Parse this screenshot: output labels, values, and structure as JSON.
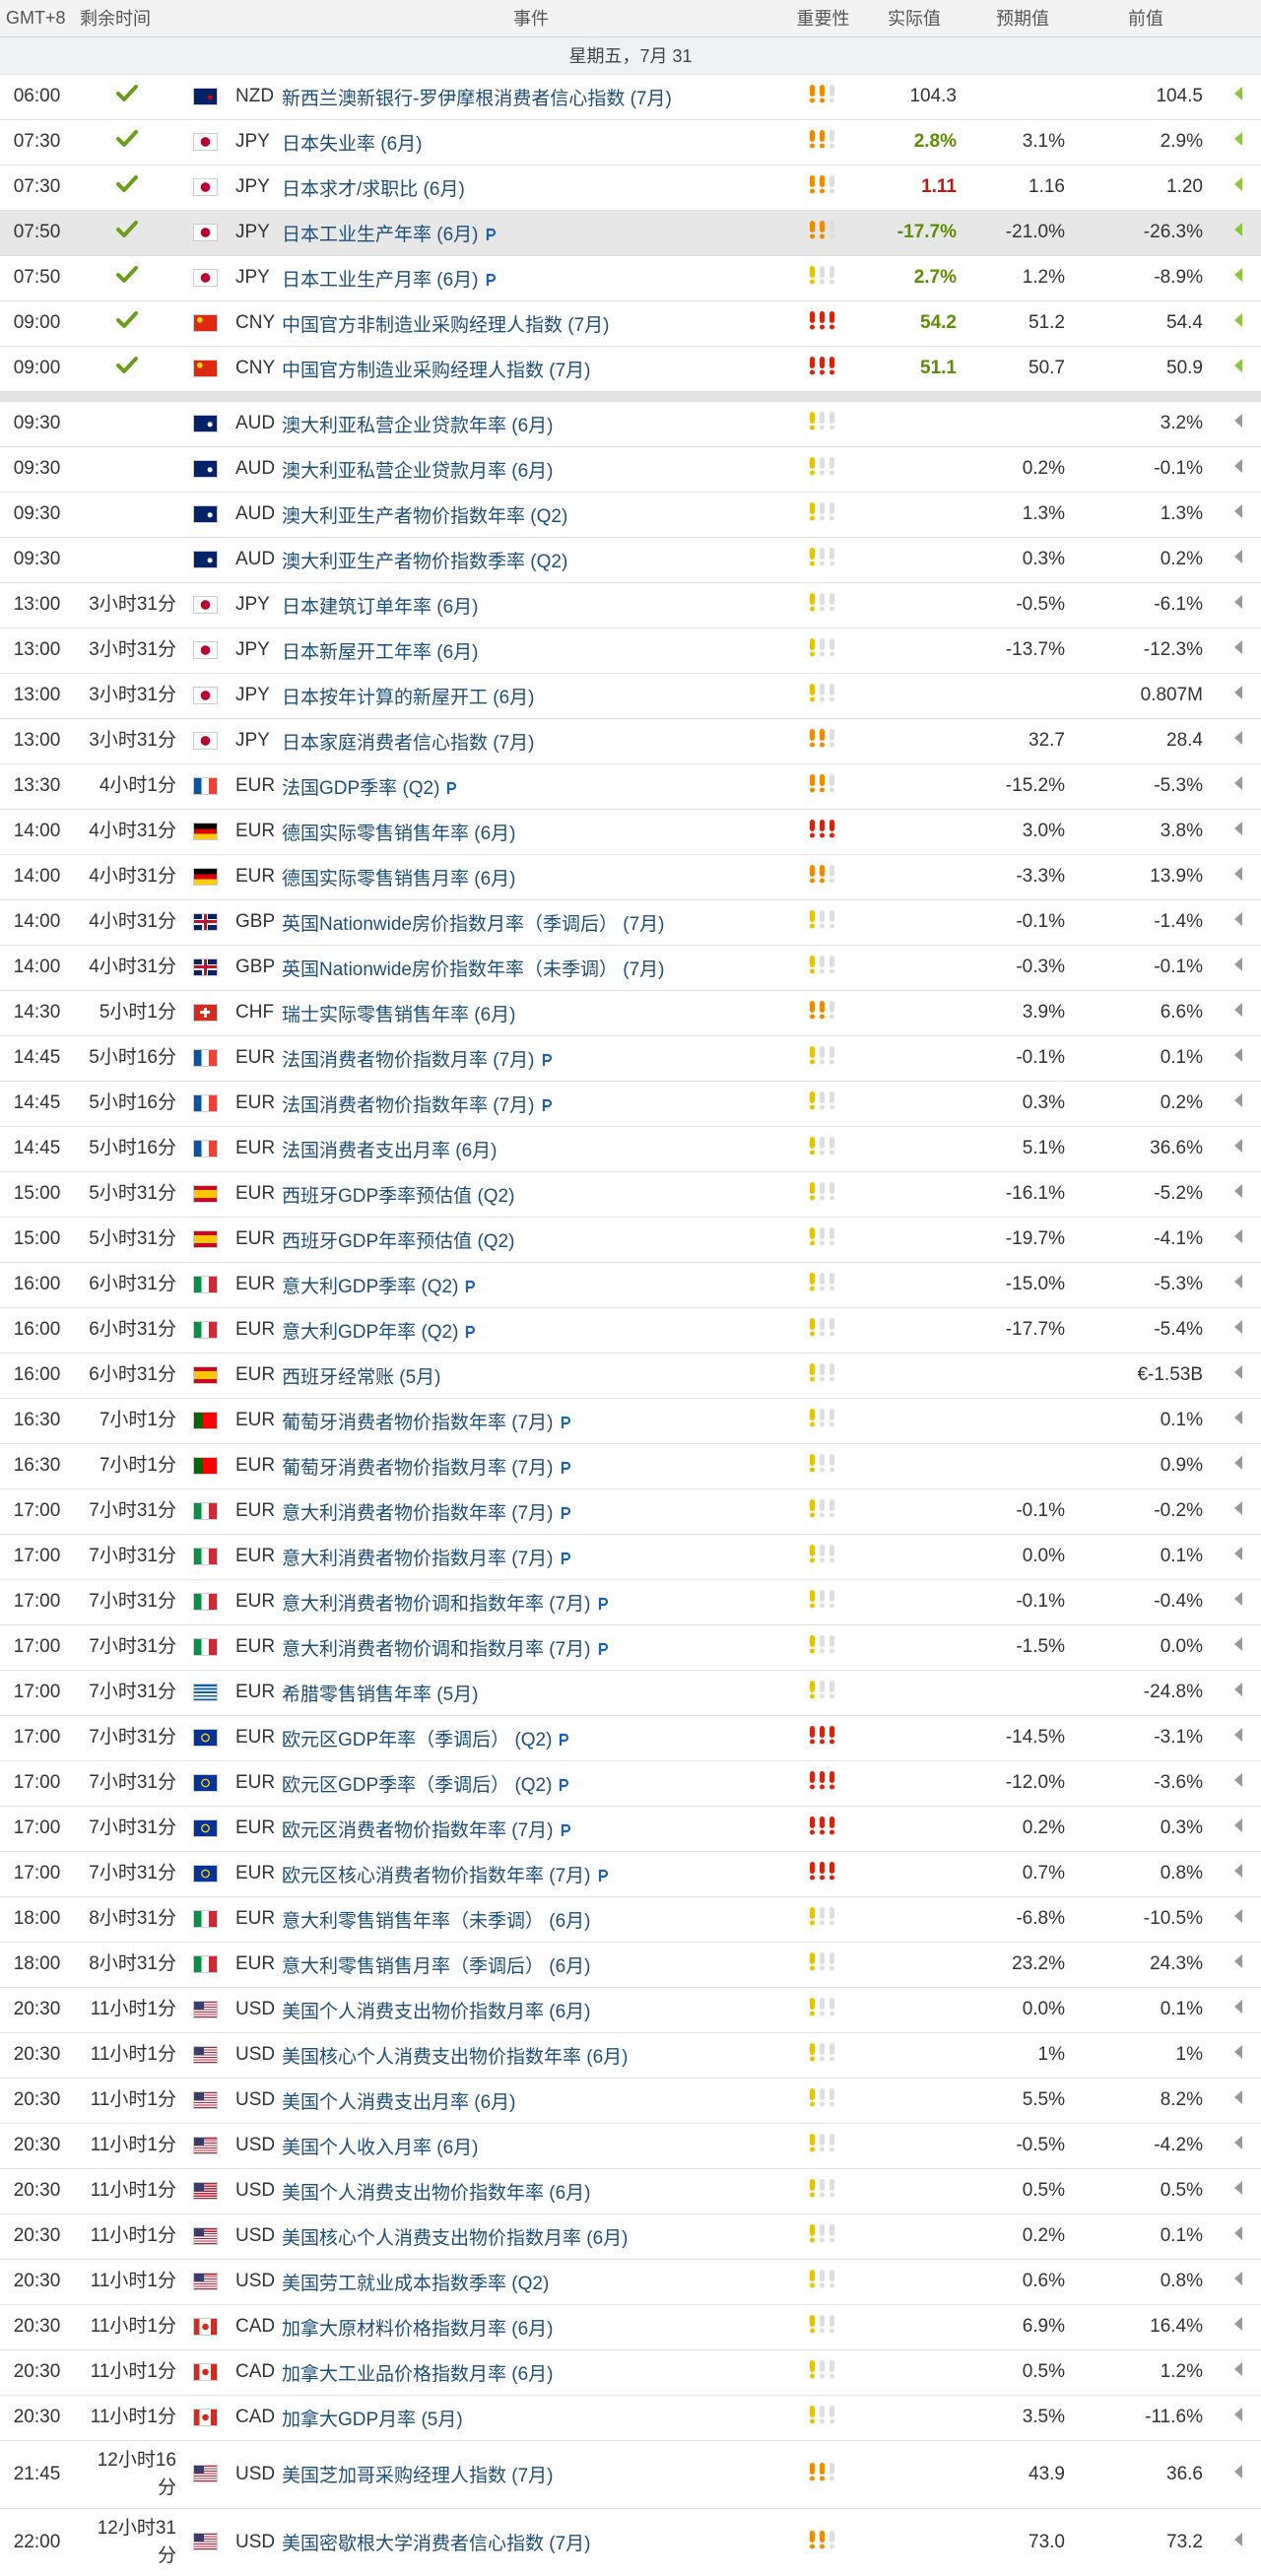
{
  "header": {
    "timezone": "GMT+8",
    "remaining": "剩余时间",
    "event": "事件",
    "importance": "重要性",
    "actual": "实际值",
    "forecast": "预期值",
    "previous": "前值"
  },
  "date": "星期五，7月 31",
  "released": [
    {
      "time": "06:00",
      "currency": "NZD",
      "event": "新西兰澳新银行-罗伊摩根消费者信心指数 (7月)",
      "importance": 2,
      "actual": "104.3",
      "previous": "104.5"
    },
    {
      "time": "07:30",
      "currency": "JPY",
      "event": "日本失业率 (6月)",
      "importance": 2,
      "actual": "2.8%",
      "actual_color": "#5a8f00",
      "forecast": "3.1%",
      "previous": "2.9%"
    },
    {
      "time": "07:30",
      "currency": "JPY",
      "event": "日本求才/求职比 (6月)",
      "importance": 2,
      "actual": "1.11",
      "actual_color": "#c8140a",
      "forecast": "1.16",
      "previous": "1.20"
    },
    {
      "time": "07:50",
      "currency": "JPY",
      "event": "日本工业生产年率 (6月)",
      "preliminary": true,
      "importance": 2,
      "actual": "-17.7%",
      "actual_color": "#5a8f00",
      "forecast": "-21.0%",
      "previous": "-26.3%",
      "highlighted": true
    },
    {
      "time": "07:50",
      "currency": "JPY",
      "event": "日本工业生产月率 (6月)",
      "preliminary": true,
      "importance": 1,
      "actual": "2.7%",
      "actual_color": "#5a8f00",
      "forecast": "1.2%",
      "previous": "-8.9%"
    },
    {
      "time": "09:00",
      "currency": "CNY",
      "event": "中国官方非制造业采购经理人指数 (7月)",
      "importance": 3,
      "actual": "54.2",
      "actual_color": "#5a8f00",
      "forecast": "51.2",
      "previous": "54.4"
    },
    {
      "time": "09:00",
      "currency": "CNY",
      "event": "中国官方制造业采购经理人指数 (7月)",
      "importance": 3,
      "actual": "51.1",
      "actual_color": "#5a8f00",
      "forecast": "50.7",
      "previous": "50.9"
    }
  ],
  "upcoming": [
    {
      "time": "09:30",
      "currency": "AUD",
      "event": "澳大利亚私营企业贷款年率 (6月)",
      "importance": 1,
      "previous": "3.2%"
    },
    {
      "time": "09:30",
      "currency": "AUD",
      "event": "澳大利亚私营企业贷款月率 (6月)",
      "importance": 1,
      "forecast": "0.2%",
      "previous": "-0.1%"
    },
    {
      "time": "09:30",
      "currency": "AUD",
      "event": "澳大利亚生产者物价指数年率 (Q2)",
      "importance": 1,
      "forecast": "1.3%",
      "previous": "1.3%"
    },
    {
      "time": "09:30",
      "currency": "AUD",
      "event": "澳大利亚生产者物价指数季率 (Q2)",
      "importance": 1,
      "forecast": "0.3%",
      "previous": "0.2%"
    },
    {
      "time": "13:00",
      "remaining": "3小时31分",
      "currency": "JPY",
      "event": "日本建筑订单年率 (6月)",
      "importance": 1,
      "forecast": "-0.5%",
      "previous": "-6.1%"
    },
    {
      "time": "13:00",
      "remaining": "3小时31分",
      "currency": "JPY",
      "event": "日本新屋开工年率 (6月)",
      "importance": 1,
      "forecast": "-13.7%",
      "previous": "-12.3%"
    },
    {
      "time": "13:00",
      "remaining": "3小时31分",
      "currency": "JPY",
      "event": "日本按年计算的新屋开工 (6月)",
      "importance": 1,
      "previous": "0.807M"
    },
    {
      "time": "13:00",
      "remaining": "3小时31分",
      "currency": "JPY",
      "event": "日本家庭消费者信心指数 (7月)",
      "importance": 2,
      "forecast": "32.7",
      "previous": "28.4"
    },
    {
      "time": "13:30",
      "remaining": "4小时1分",
      "currency": "EUR",
      "event": "法国GDP季率 (Q2)",
      "preliminary": true,
      "importance": 2,
      "forecast": "-15.2%",
      "previous": "-5.3%"
    },
    {
      "time": "14:00",
      "remaining": "4小时31分",
      "currency": "EUR",
      "event": "德国实际零售销售年率 (6月)",
      "importance": 3,
      "forecast": "3.0%",
      "previous": "3.8%"
    },
    {
      "time": "14:00",
      "remaining": "4小时31分",
      "currency": "EUR",
      "event": "德国实际零售销售月率 (6月)",
      "importance": 2,
      "forecast": "-3.3%",
      "previous": "13.9%"
    },
    {
      "time": "14:00",
      "remaining": "4小时31分",
      "currency": "GBP",
      "event": "英国Nationwide房价指数月率（季调后） (7月)",
      "importance": 1,
      "forecast": "-0.1%",
      "previous": "-1.4%"
    },
    {
      "time": "14:00",
      "remaining": "4小时31分",
      "currency": "GBP",
      "event": "英国Nationwide房价指数年率（未季调） (7月)",
      "importance": 1,
      "forecast": "-0.3%",
      "previous": "-0.1%"
    },
    {
      "time": "14:30",
      "remaining": "5小时1分",
      "currency": "CHF",
      "event": "瑞士实际零售销售年率 (6月)",
      "importance": 2,
      "forecast": "3.9%",
      "previous": "6.6%"
    },
    {
      "time": "14:45",
      "remaining": "5小时16分",
      "currency": "EUR",
      "event": "法国消费者物价指数月率 (7月)",
      "preliminary": true,
      "importance": 1,
      "forecast": "-0.1%",
      "previous": "0.1%"
    },
    {
      "time": "14:45",
      "remaining": "5小时16分",
      "currency": "EUR",
      "event": "法国消费者物价指数年率 (7月)",
      "preliminary": true,
      "importance": 1,
      "forecast": "0.3%",
      "previous": "0.2%"
    },
    {
      "time": "14:45",
      "remaining": "5小时16分",
      "currency": "EUR",
      "event": "法国消费者支出月率 (6月)",
      "importance": 1,
      "forecast": "5.1%",
      "previous": "36.6%"
    },
    {
      "time": "15:00",
      "remaining": "5小时31分",
      "currency": "EUR",
      "event": "西班牙GDP季率预估值 (Q2)",
      "importance": 1,
      "forecast": "-16.1%",
      "previous": "-5.2%"
    },
    {
      "time": "15:00",
      "remaining": "5小时31分",
      "currency": "EUR",
      "event": "西班牙GDP年率预估值 (Q2)",
      "importance": 1,
      "forecast": "-19.7%",
      "previous": "-4.1%"
    },
    {
      "time": "16:00",
      "remaining": "6小时31分",
      "currency": "EUR",
      "event": "意大利GDP季率 (Q2)",
      "preliminary": true,
      "importance": 1,
      "forecast": "-15.0%",
      "previous": "-5.3%"
    },
    {
      "time": "16:00",
      "remaining": "6小时31分",
      "currency": "EUR",
      "event": "意大利GDP年率 (Q2)",
      "preliminary": true,
      "importance": 1,
      "forecast": "-17.7%",
      "previous": "-5.4%"
    },
    {
      "time": "16:00",
      "remaining": "6小时31分",
      "currency": "EUR",
      "event": "西班牙经常账 (5月)",
      "importance": 1,
      "previous": "€-1.53B"
    },
    {
      "time": "16:30",
      "remaining": "7小时1分",
      "currency": "EUR",
      "event": "葡萄牙消费者物价指数年率 (7月)",
      "preliminary": true,
      "importance": 1,
      "previous": "0.1%"
    },
    {
      "time": "16:30",
      "remaining": "7小时1分",
      "currency": "EUR",
      "event": "葡萄牙消费者物价指数月率 (7月)",
      "preliminary": true,
      "importance": 1,
      "previous": "0.9%"
    },
    {
      "time": "17:00",
      "remaining": "7小时31分",
      "currency": "EUR",
      "event": "意大利消费者物价指数年率 (7月)",
      "preliminary": true,
      "importance": 1,
      "forecast": "-0.1%",
      "previous": "-0.2%"
    },
    {
      "time": "17:00",
      "remaining": "7小时31分",
      "currency": "EUR",
      "event": "意大利消费者物价指数月率 (7月)",
      "preliminary": true,
      "importance": 1,
      "forecast": "0.0%",
      "previous": "0.1%"
    },
    {
      "time": "17:00",
      "remaining": "7小时31分",
      "currency": "EUR",
      "event": "意大利消费者物价调和指数年率 (7月)",
      "preliminary": true,
      "importance": 1,
      "forecast": "-0.1%",
      "previous": "-0.4%"
    },
    {
      "time": "17:00",
      "remaining": "7小时31分",
      "currency": "EUR",
      "event": "意大利消费者物价调和指数月率 (7月)",
      "preliminary": true,
      "importance": 1,
      "forecast": "-1.5%",
      "previous": "0.0%"
    },
    {
      "time": "17:00",
      "remaining": "7小时31分",
      "currency": "EUR",
      "event": "希腊零售销售年率 (5月)",
      "importance": 1,
      "previous": "-24.8%"
    },
    {
      "time": "17:00",
      "remaining": "7小时31分",
      "currency": "EUR",
      "event": "欧元区GDP年率（季调后） (Q2)",
      "preliminary": true,
      "importance": 3,
      "forecast": "-14.5%",
      "previous": "-3.1%"
    },
    {
      "time": "17:00",
      "remaining": "7小时31分",
      "currency": "EUR",
      "event": "欧元区GDP季率（季调后） (Q2)",
      "preliminary": true,
      "importance": 3,
      "forecast": "-12.0%",
      "previous": "-3.6%"
    },
    {
      "time": "17:00",
      "remaining": "7小时31分",
      "currency": "EUR",
      "event": "欧元区消费者物价指数年率 (7月)",
      "preliminary": true,
      "importance": 3,
      "forecast": "0.2%",
      "previous": "0.3%"
    },
    {
      "time": "17:00",
      "remaining": "7小时31分",
      "currency": "EUR",
      "event": "欧元区核心消费者物价指数年率 (7月)",
      "preliminary": true,
      "importance": 3,
      "forecast": "0.7%",
      "previous": "0.8%"
    },
    {
      "time": "18:00",
      "remaining": "8小时31分",
      "currency": "EUR",
      "event": "意大利零售销售年率（未季调） (6月)",
      "importance": 1,
      "forecast": "-6.8%",
      "previous": "-10.5%"
    },
    {
      "time": "18:00",
      "remaining": "8小时31分",
      "currency": "EUR",
      "event": "意大利零售销售月率（季调后） (6月)",
      "importance": 1,
      "forecast": "23.2%",
      "previous": "24.3%"
    },
    {
      "time": "20:30",
      "remaining": "11小时1分",
      "currency": "USD",
      "event": "美国个人消费支出物价指数月率 (6月)",
      "importance": 1,
      "forecast": "0.0%",
      "previous": "0.1%"
    },
    {
      "time": "20:30",
      "remaining": "11小时1分",
      "currency": "USD",
      "event": "美国核心个人消费支出物价指数年率 (6月)",
      "importance": 1,
      "forecast": "1%",
      "previous": "1%"
    },
    {
      "time": "20:30",
      "remaining": "11小时1分",
      "currency": "USD",
      "event": "美国个人消费支出月率 (6月)",
      "importance": 1,
      "forecast": "5.5%",
      "previous": "8.2%"
    },
    {
      "time": "20:30",
      "remaining": "11小时1分",
      "currency": "USD",
      "event": "美国个人收入月率 (6月)",
      "importance": 1,
      "forecast": "-0.5%",
      "previous": "-4.2%"
    },
    {
      "time": "20:30",
      "remaining": "11小时1分",
      "currency": "USD",
      "event": "美国个人消费支出物价指数年率 (6月)",
      "importance": 1,
      "forecast": "0.5%",
      "previous": "0.5%"
    },
    {
      "time": "20:30",
      "remaining": "11小时1分",
      "currency": "USD",
      "event": "美国核心个人消费支出物价指数月率 (6月)",
      "importance": 1,
      "forecast": "0.2%",
      "previous": "0.1%"
    },
    {
      "time": "20:30",
      "remaining": "11小时1分",
      "currency": "USD",
      "event": "美国劳工就业成本指数季率 (Q2)",
      "importance": 1,
      "forecast": "0.6%",
      "previous": "0.8%"
    },
    {
      "time": "20:30",
      "remaining": "11小时1分",
      "currency": "CAD",
      "event": "加拿大原材料价格指数月率 (6月)",
      "importance": 1,
      "forecast": "6.9%",
      "previous": "16.4%"
    },
    {
      "time": "20:30",
      "remaining": "11小时1分",
      "currency": "CAD",
      "event": "加拿大工业品价格指数月率 (6月)",
      "importance": 1,
      "forecast": "0.5%",
      "previous": "1.2%"
    },
    {
      "time": "20:30",
      "remaining": "11小时1分",
      "currency": "CAD",
      "event": "加拿大GDP月率 (5月)",
      "importance": 1,
      "forecast": "3.5%",
      "previous": "-11.6%"
    },
    {
      "time": "21:45",
      "remaining": "12小时16分",
      "currency": "USD",
      "event": "美国芝加哥采购经理人指数 (7月)",
      "importance": 2,
      "forecast": "43.9",
      "previous": "36.6"
    },
    {
      "time": "22:00",
      "remaining": "12小时31分",
      "currency": "USD",
      "event": "美国密歇根大学消费者信心指数 (7月)",
      "importance": 2,
      "forecast": "73.0",
      "previous": "73.2"
    }
  ]
}
